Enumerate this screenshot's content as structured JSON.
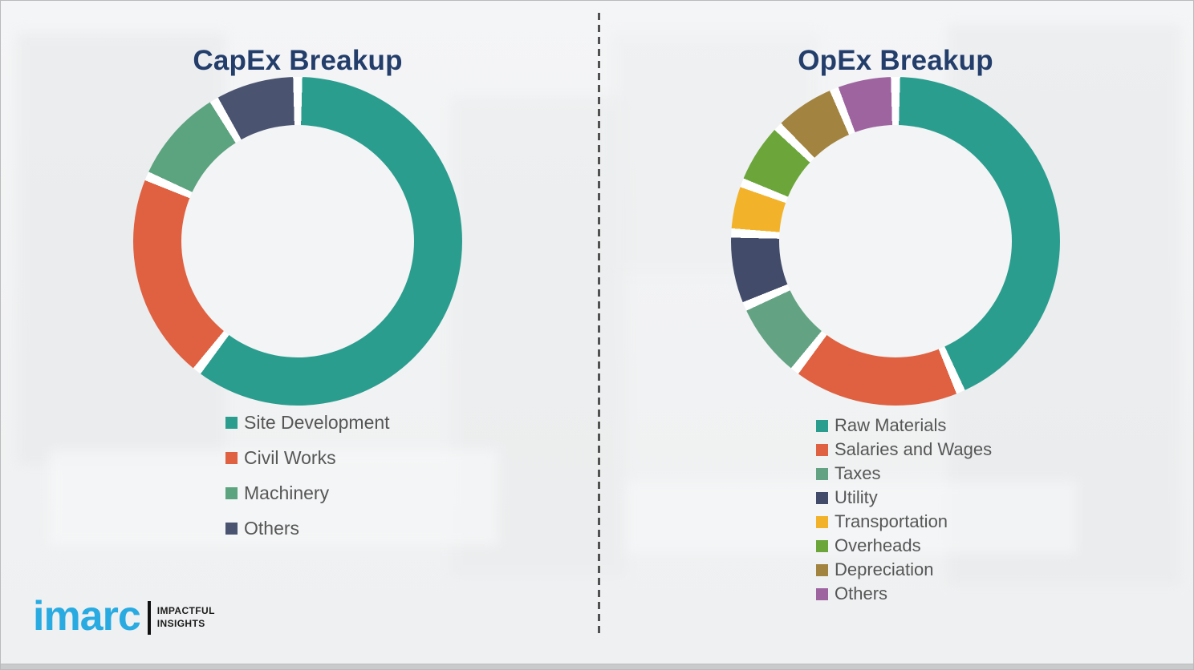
{
  "capex": {
    "title": "CapEx Breakup"
  },
  "opex": {
    "title": "OpEx Breakup"
  },
  "chart_data": [
    {
      "id": "capex",
      "type": "pie",
      "subtype": "donut",
      "title": "CapEx Breakup",
      "categories": [
        "Site Development",
        "Civil Works",
        "Machinery",
        "Others"
      ],
      "values": [
        60.5,
        21,
        10,
        8.5
      ],
      "unit": "percent-estimated",
      "colors": [
        "#2A9D8F",
        "#DF6141",
        "#5CA37F",
        "#4A5370"
      ],
      "start_angle_deg": 0,
      "direction": "clockwise",
      "legend_position": "below-left",
      "data_labels": false
    },
    {
      "id": "opex",
      "type": "pie",
      "subtype": "donut",
      "title": "OpEx Breakup",
      "categories": [
        "Raw Materials",
        "Salaries and Wages",
        "Taxes",
        "Utility",
        "Transportation",
        "Overheads",
        "Depreciation",
        "Others"
      ],
      "values": [
        43.5,
        17,
        8,
        7.3,
        5,
        6.5,
        6.6,
        6.1
      ],
      "unit": "percent-estimated",
      "colors": [
        "#2A9D8F",
        "#DF6141",
        "#63A383",
        "#424C6A",
        "#F2B32B",
        "#6CA63A",
        "#A28440",
        "#9D64A0"
      ],
      "start_angle_deg": 0,
      "direction": "clockwise",
      "legend_position": "below-left",
      "data_labels": false
    }
  ],
  "logo": {
    "brand": "imarc",
    "tagline_line1": "IMPACTFUL",
    "tagline_line2": "INSIGHTS"
  },
  "colors": {
    "title": "#233E6B",
    "legend_text": "#565656",
    "brand_blue": "#29ABE2",
    "divider": "#515151",
    "background": "#F2F3F4"
  }
}
